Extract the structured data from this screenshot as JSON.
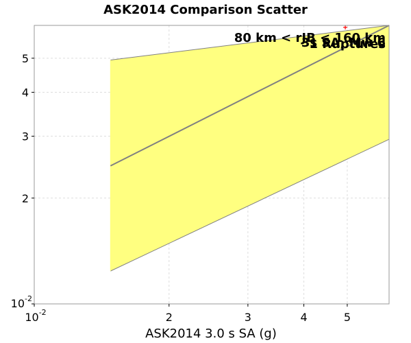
{
  "chart_data": {
    "type": "scatter",
    "title": "ASK2014 Comparison Scatter",
    "xlabel": "ASK2014 3.0 s SA (g)",
    "ylabel": "",
    "x_scale": "log",
    "y_scale": "log",
    "xlim": [
      0.01,
      0.062
    ],
    "ylim": [
      0.01,
      0.062
    ],
    "x_ticks": [
      {
        "value": 0.01,
        "base": "10",
        "exp": "-2"
      },
      {
        "value": 0.02,
        "label": "2"
      },
      {
        "value": 0.03,
        "label": "3"
      },
      {
        "value": 0.04,
        "label": "4"
      },
      {
        "value": 0.05,
        "label": "5"
      }
    ],
    "y_ticks": [
      {
        "value": 0.01,
        "base": "10",
        "exp": "-2"
      },
      {
        "value": 0.02,
        "label": "2"
      },
      {
        "value": 0.03,
        "label": "3"
      },
      {
        "value": 0.04,
        "label": "4"
      },
      {
        "value": 0.05,
        "label": "5"
      }
    ],
    "grid": true,
    "one_to_one_line": {
      "x": [
        0.0148,
        0.062
      ],
      "y": [
        0.0247,
        0.062
      ],
      "color": "#808080"
    },
    "band": {
      "upper": {
        "x": [
          0.0148,
          0.062
        ],
        "y": [
          0.0494,
          0.062
        ]
      },
      "lower": {
        "x": [
          0.0148,
          0.062
        ],
        "y": [
          0.0124,
          0.0294
        ]
      },
      "fill": "#ffff80"
    },
    "points": [
      {
        "x": 0.0495,
        "y": 0.0612
      }
    ],
    "point_color": "#ff0000",
    "annotations": [
      "80 km < rJB < 160 km",
      "3s SA, Mw 6",
      "1 Ruptures"
    ]
  }
}
